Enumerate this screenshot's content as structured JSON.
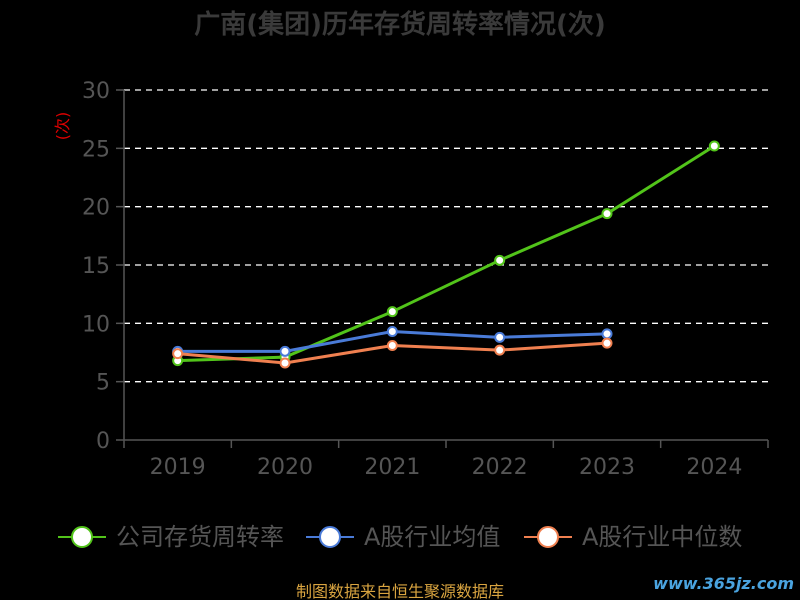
{
  "title": "广南(集团)历年存货周转率情况(次)",
  "source_note": "制图数据来自恒生聚源数据库",
  "watermark": "www.365jz.com",
  "colors": {
    "background": "#000000",
    "axis": "#555555",
    "tick_text": "#555555",
    "grid": "#ffffff",
    "unit_label": "#e00000"
  },
  "chart_data": {
    "type": "line",
    "title": "广南(集团)历年存货周转率情况(次)",
    "ylabel": "(次)",
    "xlabel": "",
    "categories": [
      "2019",
      "2020",
      "2021",
      "2022",
      "2023",
      "2024"
    ],
    "ylim": [
      0,
      30
    ],
    "yticks": [
      0,
      5,
      10,
      15,
      20,
      25,
      30
    ],
    "grid": true,
    "legend_position": "bottom",
    "series": [
      {
        "name": "公司存货周转率",
        "color": "#52c41a",
        "values": [
          6.8,
          7.1,
          11.0,
          15.4,
          19.4,
          25.2
        ]
      },
      {
        "name": "A股行业均值",
        "color": "#4a7bd8",
        "values": [
          7.6,
          7.6,
          9.3,
          8.8,
          9.1,
          null
        ]
      },
      {
        "name": "A股行业中位数",
        "color": "#f08050",
        "values": [
          7.4,
          6.6,
          8.1,
          7.7,
          8.3,
          null
        ]
      }
    ]
  }
}
